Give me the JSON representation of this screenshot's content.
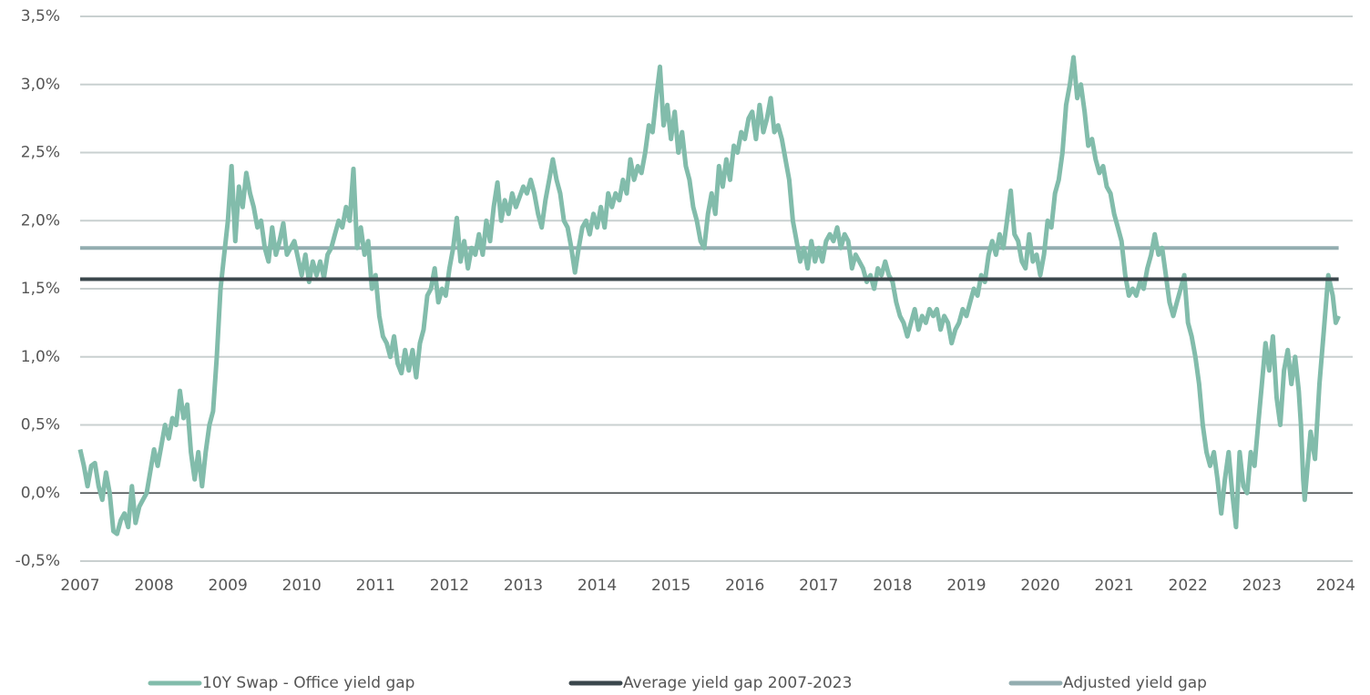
{
  "chart_data": {
    "type": "line",
    "series": [
      {
        "name": "10Y Swap - Office yield gap",
        "color": "#82bcab",
        "x": [
          2007.0,
          2007.05,
          2007.1,
          2007.15,
          2007.2,
          2007.25,
          2007.3,
          2007.35,
          2007.4,
          2007.45,
          2007.5,
          2007.55,
          2007.6,
          2007.65,
          2007.7,
          2007.75,
          2007.8,
          2007.85,
          2007.9,
          2008.0,
          2008.05,
          2008.1,
          2008.15,
          2008.2,
          2008.25,
          2008.3,
          2008.35,
          2008.4,
          2008.45,
          2008.5,
          2008.55,
          2008.6,
          2008.65,
          2008.7,
          2008.75,
          2008.8,
          2008.85,
          2008.9,
          2008.95,
          2009.0,
          2009.05,
          2009.1,
          2009.15,
          2009.2,
          2009.25,
          2009.3,
          2009.35,
          2009.4,
          2009.45,
          2009.5,
          2009.55,
          2009.6,
          2009.65,
          2009.7,
          2009.75,
          2009.8,
          2009.9,
          2010.0,
          2010.05,
          2010.1,
          2010.15,
          2010.2,
          2010.25,
          2010.3,
          2010.35,
          2010.4,
          2010.45,
          2010.5,
          2010.55,
          2010.6,
          2010.65,
          2010.7,
          2010.75,
          2010.8,
          2010.85,
          2010.9,
          2010.95,
          2011.0,
          2011.05,
          2011.1,
          2011.15,
          2011.2,
          2011.25,
          2011.3,
          2011.35,
          2011.4,
          2011.45,
          2011.5,
          2011.55,
          2011.6,
          2011.65,
          2011.7,
          2011.75,
          2011.8,
          2011.85,
          2011.9,
          2011.95,
          2012.0,
          2012.05,
          2012.1,
          2012.15,
          2012.2,
          2012.25,
          2012.3,
          2012.35,
          2012.4,
          2012.45,
          2012.5,
          2012.55,
          2012.6,
          2012.65,
          2012.7,
          2012.75,
          2012.8,
          2012.85,
          2012.9,
          2013.0,
          2013.05,
          2013.1,
          2013.15,
          2013.2,
          2013.25,
          2013.3,
          2013.35,
          2013.4,
          2013.45,
          2013.5,
          2013.55,
          2013.6,
          2013.65,
          2013.7,
          2013.75,
          2013.8,
          2013.85,
          2013.9,
          2013.95,
          2014.0,
          2014.05,
          2014.1,
          2014.15,
          2014.2,
          2014.25,
          2014.3,
          2014.35,
          2014.4,
          2014.45,
          2014.5,
          2014.55,
          2014.6,
          2014.65,
          2014.7,
          2014.75,
          2014.8,
          2014.85,
          2014.9,
          2014.95,
          2015.0,
          2015.05,
          2015.1,
          2015.15,
          2015.2,
          2015.25,
          2015.3,
          2015.35,
          2015.4,
          2015.45,
          2015.5,
          2015.55,
          2015.6,
          2015.65,
          2015.7,
          2015.75,
          2015.8,
          2015.85,
          2015.9,
          2015.95,
          2016.0,
          2016.05,
          2016.1,
          2016.15,
          2016.2,
          2016.25,
          2016.3,
          2016.35,
          2016.4,
          2016.45,
          2016.5,
          2016.55,
          2016.6,
          2016.65,
          2016.7,
          2016.75,
          2016.8,
          2016.85,
          2016.9,
          2016.95,
          2017.0,
          2017.05,
          2017.1,
          2017.15,
          2017.2,
          2017.25,
          2017.3,
          2017.35,
          2017.4,
          2017.45,
          2017.5,
          2017.55,
          2017.6,
          2017.65,
          2017.7,
          2017.75,
          2017.8,
          2017.85,
          2017.9,
          2017.95,
          2018.0,
          2018.05,
          2018.1,
          2018.15,
          2018.2,
          2018.25,
          2018.3,
          2018.35,
          2018.4,
          2018.45,
          2018.5,
          2018.55,
          2018.6,
          2018.65,
          2018.7,
          2018.75,
          2018.8,
          2018.85,
          2018.9,
          2018.95,
          2019.0,
          2019.05,
          2019.1,
          2019.15,
          2019.2,
          2019.25,
          2019.3,
          2019.35,
          2019.4,
          2019.45,
          2019.5,
          2019.55,
          2019.6,
          2019.65,
          2019.7,
          2019.75,
          2019.8,
          2019.85,
          2019.9,
          2019.95,
          2020.0,
          2020.05,
          2020.1,
          2020.15,
          2020.2,
          2020.25,
          2020.3,
          2020.35,
          2020.4,
          2020.45,
          2020.5,
          2020.55,
          2020.6,
          2020.65,
          2020.7,
          2020.75,
          2020.8,
          2020.85,
          2020.9,
          2020.95,
          2021.0,
          2021.05,
          2021.1,
          2021.15,
          2021.2,
          2021.25,
          2021.3,
          2021.35,
          2021.4,
          2021.45,
          2021.5,
          2021.55,
          2021.6,
          2021.65,
          2021.7,
          2021.75,
          2021.8,
          2021.85,
          2021.9,
          2021.95,
          2022.0,
          2022.05,
          2022.1,
          2022.15,
          2022.2,
          2022.25,
          2022.3,
          2022.35,
          2022.4,
          2022.45,
          2022.5,
          2022.55,
          2022.6,
          2022.65,
          2022.7,
          2022.75,
          2022.8,
          2022.85,
          2022.9,
          2022.95,
          2023.0,
          2023.05,
          2023.1,
          2023.15,
          2023.2,
          2023.25,
          2023.3,
          2023.35,
          2023.4,
          2023.45,
          2023.5,
          2023.53,
          2023.56,
          2023.58,
          2023.62,
          2023.66,
          2023.72,
          2023.78,
          2023.84,
          2023.9,
          2023.96,
          2024.0,
          2024.04
        ],
        "values": [
          0.32,
          0.2,
          0.05,
          0.2,
          0.22,
          0.05,
          -0.05,
          0.15,
          0.0,
          -0.28,
          -0.3,
          -0.2,
          -0.15,
          -0.25,
          0.05,
          -0.22,
          -0.1,
          -0.05,
          0.0,
          0.32,
          0.2,
          0.35,
          0.5,
          0.4,
          0.55,
          0.5,
          0.75,
          0.55,
          0.65,
          0.3,
          0.1,
          0.3,
          0.05,
          0.3,
          0.5,
          0.6,
          1.0,
          1.5,
          1.75,
          2.0,
          2.4,
          1.85,
          2.25,
          2.1,
          2.35,
          2.2,
          2.1,
          1.95,
          2.0,
          1.8,
          1.7,
          1.95,
          1.75,
          1.85,
          1.98,
          1.75,
          1.85,
          1.6,
          1.75,
          1.55,
          1.7,
          1.6,
          1.7,
          1.58,
          1.75,
          1.8,
          1.9,
          2.0,
          1.95,
          2.1,
          2.0,
          2.38,
          1.8,
          1.95,
          1.75,
          1.85,
          1.5,
          1.6,
          1.3,
          1.15,
          1.1,
          1.0,
          1.15,
          0.95,
          0.88,
          1.05,
          0.9,
          1.05,
          0.85,
          1.1,
          1.2,
          1.45,
          1.5,
          1.65,
          1.4,
          1.5,
          1.45,
          1.65,
          1.8,
          2.02,
          1.7,
          1.85,
          1.65,
          1.8,
          1.75,
          1.9,
          1.75,
          2.0,
          1.85,
          2.1,
          2.28,
          2.0,
          2.15,
          2.05,
          2.2,
          2.1,
          2.25,
          2.2,
          2.3,
          2.2,
          2.05,
          1.95,
          2.15,
          2.3,
          2.45,
          2.3,
          2.2,
          2.0,
          1.95,
          1.8,
          1.62,
          1.8,
          1.95,
          2.0,
          1.9,
          2.05,
          1.95,
          2.1,
          1.95,
          2.2,
          2.1,
          2.2,
          2.15,
          2.3,
          2.2,
          2.45,
          2.3,
          2.4,
          2.35,
          2.5,
          2.7,
          2.65,
          2.9,
          3.13,
          2.7,
          2.85,
          2.6,
          2.8,
          2.5,
          2.65,
          2.4,
          2.3,
          2.1,
          2.0,
          1.85,
          1.8,
          2.05,
          2.2,
          2.05,
          2.4,
          2.25,
          2.45,
          2.3,
          2.55,
          2.5,
          2.65,
          2.6,
          2.75,
          2.8,
          2.6,
          2.85,
          2.65,
          2.75,
          2.9,
          2.65,
          2.7,
          2.6,
          2.45,
          2.3,
          2.0,
          1.85,
          1.7,
          1.8,
          1.65,
          1.85,
          1.7,
          1.8,
          1.7,
          1.85,
          1.9,
          1.85,
          1.95,
          1.8,
          1.9,
          1.85,
          1.65,
          1.75,
          1.7,
          1.65,
          1.55,
          1.6,
          1.5,
          1.65,
          1.6,
          1.7,
          1.6,
          1.55,
          1.4,
          1.3,
          1.25,
          1.15,
          1.25,
          1.35,
          1.2,
          1.3,
          1.25,
          1.35,
          1.3,
          1.35,
          1.2,
          1.3,
          1.25,
          1.1,
          1.2,
          1.25,
          1.35,
          1.3,
          1.4,
          1.5,
          1.45,
          1.6,
          1.55,
          1.75,
          1.85,
          1.75,
          1.9,
          1.8,
          2.0,
          2.22,
          1.9,
          1.85,
          1.7,
          1.65,
          1.9,
          1.7,
          1.75,
          1.6,
          1.75,
          2.0,
          1.95,
          2.2,
          2.3,
          2.5,
          2.85,
          3.0,
          3.2,
          2.9,
          3.0,
          2.8,
          2.55,
          2.6,
          2.45,
          2.35,
          2.4,
          2.25,
          2.2,
          2.05,
          1.95,
          1.85,
          1.6,
          1.45,
          1.5,
          1.45,
          1.55,
          1.5,
          1.65,
          1.75,
          1.9,
          1.75,
          1.8,
          1.6,
          1.4,
          1.3,
          1.4,
          1.5,
          1.6,
          1.25,
          1.15,
          1.0,
          0.8,
          0.5,
          0.3,
          0.2,
          0.3,
          0.1,
          -0.15,
          0.1,
          0.3,
          0.0,
          -0.25,
          0.3,
          0.05,
          0.0,
          0.3,
          0.2,
          0.5,
          0.8,
          1.1,
          0.9,
          1.15,
          0.7,
          0.5,
          0.9,
          1.05,
          0.8,
          1.0,
          0.75,
          0.5,
          0.1,
          -0.05,
          0.2,
          0.45,
          0.25,
          0.8,
          1.2,
          1.6,
          1.45,
          1.25,
          1.3
        ],
        "width": 5
      },
      {
        "name": "Average yield gap 2007-2023",
        "color": "#3b474c",
        "x": [
          2007,
          2024.04
        ],
        "values": [
          1.57,
          1.57
        ],
        "width": 4
      },
      {
        "name": "Adjusted yield gap",
        "color": "#93adb0",
        "x": [
          2007,
          2024.04
        ],
        "values": [
          1.8,
          1.8
        ],
        "width": 4
      }
    ],
    "xlim": [
      2007,
      2024.23
    ],
    "xticks": [
      2007,
      2008,
      2009,
      2010,
      2011,
      2012,
      2013,
      2014,
      2015,
      2016,
      2017,
      2018,
      2019,
      2020,
      2021,
      2022,
      2023,
      2024
    ],
    "ylim": [
      -0.5,
      3.5
    ],
    "yticks": [
      {
        "value": -0.5,
        "label": "-0,5%"
      },
      {
        "value": 0,
        "label": "0,0%"
      },
      {
        "value": 0.5,
        "label": "0,5%"
      },
      {
        "value": 1,
        "label": "1,0%"
      },
      {
        "value": 1.5,
        "label": "1,5%"
      },
      {
        "value": 2,
        "label": "2,0%"
      },
      {
        "value": 2.5,
        "label": "2,5%"
      },
      {
        "value": 3,
        "label": "3,0%"
      },
      {
        "value": 3.5,
        "label": "3,5%"
      }
    ],
    "grid": true,
    "zero_line": true,
    "legend": "bottom"
  }
}
